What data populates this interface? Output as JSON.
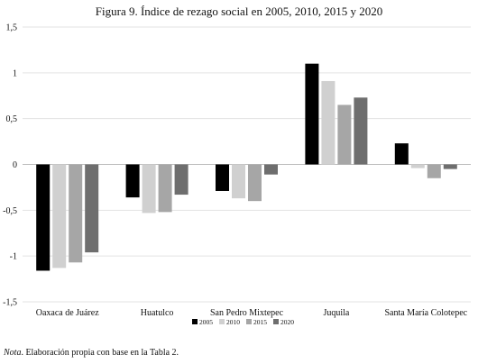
{
  "title": "Figura 9. Índice de rezago social en 2005, 2010, 2015 y 2020",
  "note": {
    "label": "Nota",
    "text": ". Elaboración propia con base en la Tabla 2."
  },
  "chart_data": {
    "type": "bar",
    "categories": [
      "Oaxaca de Juárez",
      "Huatulco",
      "San Pedro Mixtepec",
      "Juquila",
      "Santa María Colotepec"
    ],
    "series": [
      {
        "name": "2005",
        "color": "#000000",
        "values": [
          -1.16,
          -0.36,
          -0.29,
          1.1,
          0.23
        ]
      },
      {
        "name": "2010",
        "color": "#d0d0d0",
        "values": [
          -1.13,
          -0.53,
          -0.37,
          0.91,
          -0.04
        ]
      },
      {
        "name": "2015",
        "color": "#a6a6a6",
        "values": [
          -1.07,
          -0.52,
          -0.4,
          0.65,
          -0.15
        ]
      },
      {
        "name": "2020",
        "color": "#6e6e6e",
        "values": [
          -0.96,
          -0.33,
          -0.11,
          0.73,
          -0.05
        ]
      }
    ],
    "y_ticks": [
      "1,5",
      "1",
      "0,5",
      "0",
      "-0,5",
      "-1",
      "-1,5"
    ],
    "y_tick_values": [
      1.5,
      1,
      0.5,
      0,
      -0.5,
      -1,
      -1.5
    ],
    "ylim": [
      -1.5,
      1.5
    ],
    "grid": true,
    "legend_position": "bottom-center"
  }
}
